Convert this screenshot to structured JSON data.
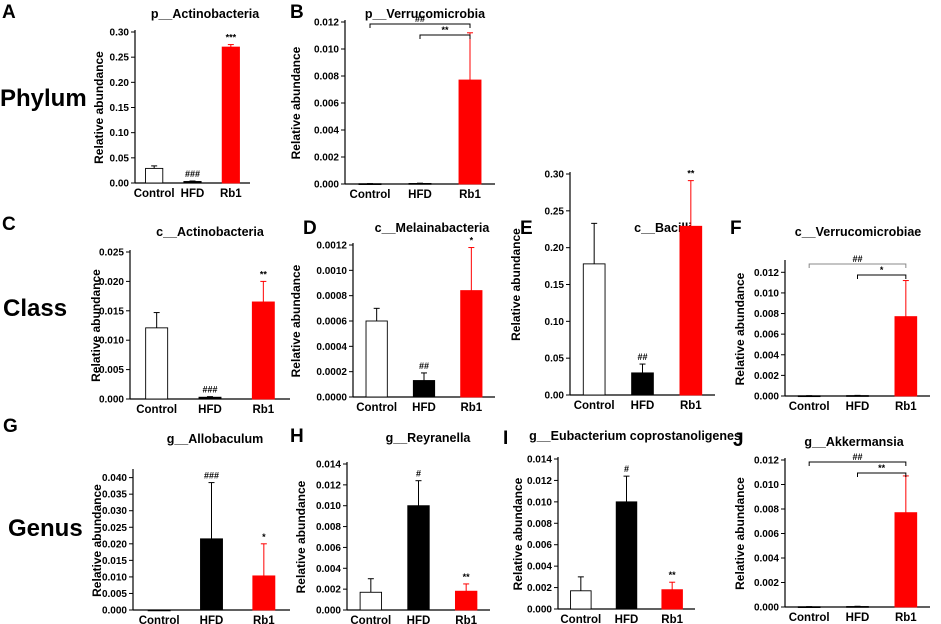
{
  "row_labels": [
    "Phylum",
    "Class",
    "Genus"
  ],
  "colors": {
    "Control": "#ffffff",
    "HFD": "#000000",
    "Rb1": "#ff0000",
    "bracket": "#000000"
  },
  "chart_data": [
    {
      "letter": "A",
      "type": "bar",
      "title": "p__Actinobacteria",
      "ylabel": "Relative abundance",
      "categories": [
        "Control",
        "HFD",
        "Rb1"
      ],
      "ylim": [
        0,
        0.3
      ],
      "yticks": [
        "0.00",
        "0.05",
        "0.10",
        "0.15",
        "0.20",
        "0.25",
        "0.30"
      ],
      "values": [
        0.029,
        0.003,
        0.27
      ],
      "errors": [
        0.005,
        0.001,
        0.005
      ],
      "annotations": [
        "",
        "###",
        "***"
      ],
      "brackets": []
    },
    {
      "letter": "B",
      "type": "bar",
      "title": "p__Verrucomicrobia",
      "ylabel": "Relative abundance",
      "categories": [
        "Control",
        "HFD",
        "Rb1"
      ],
      "ylim": [
        0,
        0.012
      ],
      "yticks": [
        "0.000",
        "0.002",
        "0.004",
        "0.006",
        "0.008",
        "0.010",
        "0.012"
      ],
      "values": [
        2e-05,
        4e-05,
        0.0077
      ],
      "errors": [
        1e-05,
        2e-05,
        0.0035
      ],
      "annotations": [
        "",
        "",
        ""
      ],
      "brackets": [
        {
          "from": 0,
          "to": 2,
          "label": "##"
        },
        {
          "from": 1,
          "to": 2,
          "label": "**"
        }
      ]
    },
    {
      "letter": "C",
      "type": "bar",
      "title": "c__Actinobacteria",
      "ylabel": "Relative abundance",
      "categories": [
        "Control",
        "HFD",
        "Rb1"
      ],
      "ylim": [
        0,
        0.025
      ],
      "yticks": [
        "0.000",
        "0.005",
        "0.010",
        "0.015",
        "0.020",
        "0.025"
      ],
      "values": [
        0.0121,
        0.0003,
        0.0165
      ],
      "errors": [
        0.0026,
        0.0001,
        0.0035
      ],
      "annotations": [
        "",
        "###",
        "**"
      ],
      "brackets": []
    },
    {
      "letter": "D",
      "type": "bar",
      "title": "c__Melainabacteria",
      "ylabel": "Relative abundance",
      "categories": [
        "Control",
        "HFD",
        "Rb1"
      ],
      "ylim": [
        0,
        0.0012
      ],
      "yticks": [
        "0.0000",
        "0.0002",
        "0.0004",
        "0.0006",
        "0.0008",
        "0.0010",
        "0.0012"
      ],
      "values": [
        0.0006,
        0.00013,
        0.00084
      ],
      "errors": [
        0.0001,
        6e-05,
        0.00034
      ],
      "annotations": [
        "",
        "##",
        "*"
      ],
      "brackets": []
    },
    {
      "letter": "E",
      "type": "bar",
      "title": "c__Bacilli",
      "ylabel": "Relative abundance",
      "categories": [
        "Control",
        "HFD",
        "Rb1"
      ],
      "ylim": [
        0,
        0.3
      ],
      "yticks": [
        "0.00",
        "0.05",
        "0.10",
        "0.15",
        "0.20",
        "0.25",
        "0.30"
      ],
      "values": [
        0.178,
        0.03,
        0.229
      ],
      "errors": [
        0.055,
        0.012,
        0.062
      ],
      "annotations": [
        "",
        "##",
        "**"
      ],
      "brackets": []
    },
    {
      "letter": "F",
      "type": "bar",
      "title": "c__Verrucomicrobiae",
      "ylabel": "Relative abundance",
      "categories": [
        "Control",
        "HFD",
        "Rb1"
      ],
      "ylim": [
        0,
        0.013
      ],
      "yticks": [
        "0.000",
        "0.002",
        "0.004",
        "0.006",
        "0.008",
        "0.010",
        "0.012"
      ],
      "values": [
        2e-05,
        4e-05,
        0.0077
      ],
      "errors": [
        1e-05,
        2e-05,
        0.0035
      ],
      "annotations": [
        "",
        "",
        ""
      ],
      "brackets": [
        {
          "from": 0,
          "to": 2,
          "label": "##",
          "color": "#888888"
        },
        {
          "from": 1,
          "to": 2,
          "label": "*",
          "color": "#000000"
        }
      ]
    },
    {
      "letter": "G",
      "type": "bar",
      "title": "g__Allobaculum",
      "ylabel": "Relative abundance",
      "categories": [
        "Control",
        "HFD",
        "Rb1"
      ],
      "ylim": [
        0,
        0.042
      ],
      "yticks": [
        "0.000",
        "0.005",
        "0.010",
        "0.015",
        "0.020",
        "0.025",
        "0.030",
        "0.035",
        "0.040"
      ],
      "values": [
        0.0,
        0.0215,
        0.0103
      ],
      "errors": [
        0.0,
        0.017,
        0.0097
      ],
      "annotations": [
        "",
        "###",
        "*"
      ],
      "brackets": []
    },
    {
      "letter": "H",
      "type": "bar",
      "title": "g__Reyranella",
      "ylabel": "Relative abundance",
      "categories": [
        "Control",
        "HFD",
        "Rb1"
      ],
      "ylim": [
        0,
        0.014
      ],
      "yticks": [
        "0.000",
        "0.002",
        "0.004",
        "0.006",
        "0.008",
        "0.010",
        "0.012",
        "0.014"
      ],
      "values": [
        0.0017,
        0.01,
        0.0018
      ],
      "errors": [
        0.0013,
        0.0024,
        0.0007
      ],
      "annotations": [
        "",
        "#",
        "**"
      ],
      "brackets": []
    },
    {
      "letter": "I",
      "type": "bar",
      "title": "g__Eubacterium coprostanoligenes",
      "ylabel": "Relative abundance",
      "categories": [
        "Control",
        "HFD",
        "Rb1"
      ],
      "ylim": [
        0,
        0.014
      ],
      "yticks": [
        "0.000",
        "0.002",
        "0.004",
        "0.006",
        "0.008",
        "0.010",
        "0.012",
        "0.014"
      ],
      "values": [
        0.0017,
        0.01,
        0.0018
      ],
      "errors": [
        0.0013,
        0.0024,
        0.0007
      ],
      "annotations": [
        "",
        "#",
        "**"
      ],
      "brackets": []
    },
    {
      "letter": "J",
      "type": "bar",
      "title": "g__Akkermansia",
      "ylabel": "Relative abundance",
      "categories": [
        "Control",
        "HFD",
        "Rb1"
      ],
      "ylim": [
        0,
        0.012
      ],
      "yticks": [
        "0.000",
        "0.002",
        "0.004",
        "0.006",
        "0.008",
        "0.010",
        "0.012"
      ],
      "values": [
        2e-05,
        4e-05,
        0.0077
      ],
      "errors": [
        1e-05,
        2e-05,
        0.003
      ],
      "annotations": [
        "",
        "",
        ""
      ],
      "brackets": [
        {
          "from": 0,
          "to": 2,
          "label": "##"
        },
        {
          "from": 1,
          "to": 2,
          "label": "**"
        }
      ]
    }
  ]
}
